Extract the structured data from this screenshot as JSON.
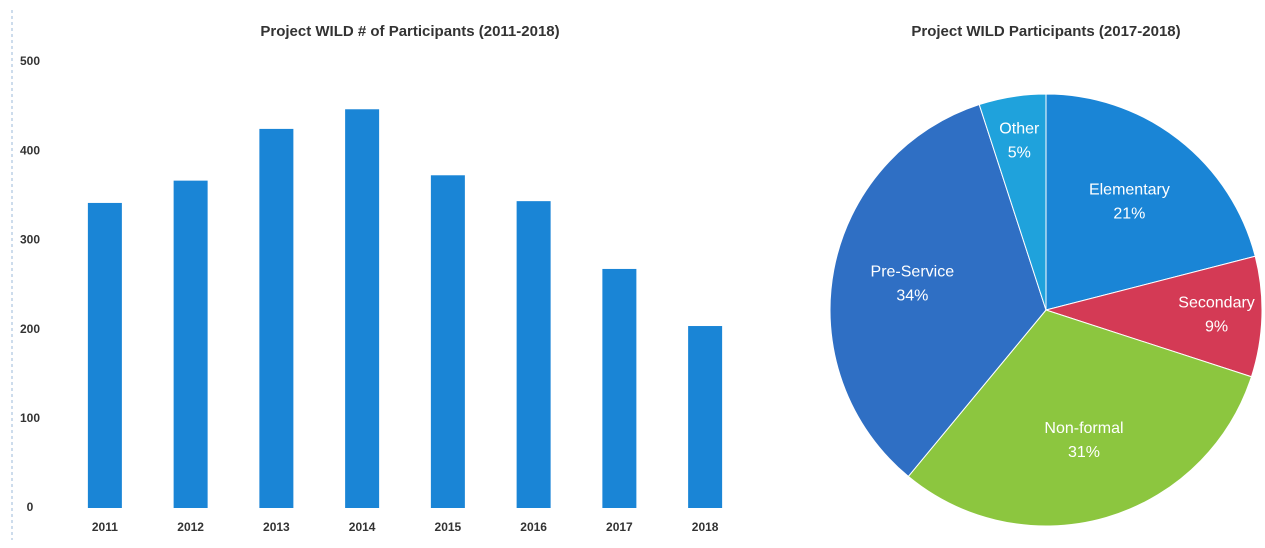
{
  "chart_data": [
    {
      "type": "bar",
      "title": "Project WILD # of Participants (2011-2018)",
      "categories": [
        "2011",
        "2012",
        "2013",
        "2014",
        "2015",
        "2016",
        "2017",
        "2018"
      ],
      "values": [
        342,
        367,
        425,
        447,
        373,
        344,
        268,
        204
      ],
      "color": "#1a85d6",
      "ylim": [
        0,
        500
      ],
      "yticks": [
        0,
        100,
        200,
        300,
        400,
        500
      ],
      "grid": false
    },
    {
      "type": "pie",
      "title": "Project WILD Participants (2017-2018)",
      "categories": [
        "Elementary",
        "Secondary",
        "Non-formal",
        "Pre-Service",
        "Other"
      ],
      "values": [
        21,
        9,
        31,
        34,
        5
      ],
      "value_labels": [
        "21%",
        "9%",
        "31%",
        "34%",
        "5%"
      ],
      "colors": [
        "#1a85d6",
        "#d43a55",
        "#8cc63f",
        "#2f6fc4",
        "#1fa2dc"
      ]
    }
  ]
}
